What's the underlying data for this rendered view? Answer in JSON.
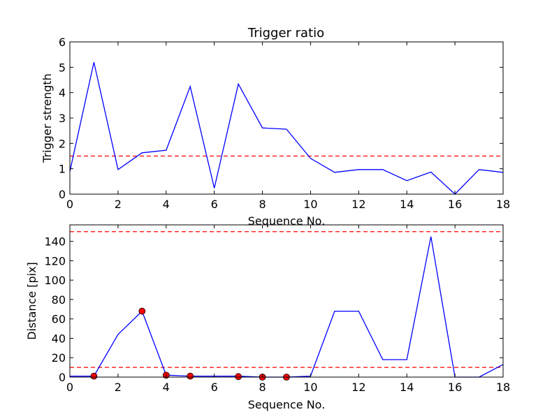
{
  "chart_data": [
    {
      "type": "line",
      "title": "Trigger ratio",
      "xlabel": "Sequence No.",
      "ylabel": "Trigger strength",
      "xlim": [
        0,
        18
      ],
      "ylim": [
        0,
        6
      ],
      "xticks": [
        "0",
        "2",
        "4",
        "6",
        "8",
        "10",
        "12",
        "14",
        "16",
        "18"
      ],
      "yticks": [
        "0",
        "1",
        "2",
        "3",
        "4",
        "5",
        "6"
      ],
      "grid": false,
      "series": [
        {
          "color": "#0000ff",
          "x": [
            0,
            1,
            2,
            3,
            4,
            5,
            6,
            7,
            8,
            9,
            10,
            11,
            12,
            13,
            14,
            15,
            16,
            17,
            18
          ],
          "y": [
            0.9,
            5.2,
            0.97,
            1.63,
            1.73,
            4.24,
            0.24,
            4.34,
            2.61,
            2.56,
            1.41,
            0.86,
            0.97,
            0.97,
            0.53,
            0.87,
            0.0,
            0.97,
            0.86
          ]
        }
      ],
      "threshold_lines": [
        {
          "y": 1.5,
          "color": "#ff0000",
          "style": "dashed"
        }
      ]
    },
    {
      "type": "line",
      "title": "",
      "xlabel": "Sequence No.",
      "ylabel": "Distance [pix]",
      "xlim": [
        0,
        18
      ],
      "ylim": [
        0,
        157
      ],
      "xticks": [
        "0",
        "2",
        "4",
        "6",
        "8",
        "10",
        "12",
        "14",
        "16",
        "18"
      ],
      "yticks": [
        "0",
        "20",
        "40",
        "60",
        "80",
        "100",
        "120",
        "140"
      ],
      "grid": false,
      "series": [
        {
          "color": "#0000ff",
          "x": [
            0,
            1,
            2,
            3,
            4,
            5,
            6,
            7,
            8,
            9,
            10,
            11,
            12,
            13,
            14,
            15,
            16,
            17,
            18
          ],
          "y": [
            1,
            1,
            44,
            68,
            2,
            1,
            1,
            1,
            0,
            0,
            1,
            68,
            68,
            18,
            18,
            145,
            0,
            0,
            13
          ]
        }
      ],
      "markers": {
        "color": "#ff0000",
        "edge_color": "#000000",
        "x": [
          1,
          3,
          4,
          5,
          7,
          8,
          9
        ],
        "y": [
          1,
          68,
          2,
          1,
          0.5,
          0,
          0
        ]
      },
      "threshold_lines": [
        {
          "y": 150,
          "color": "#ff0000",
          "style": "dashed"
        },
        {
          "y": 10,
          "color": "#ff0000",
          "style": "dashed"
        }
      ]
    }
  ]
}
